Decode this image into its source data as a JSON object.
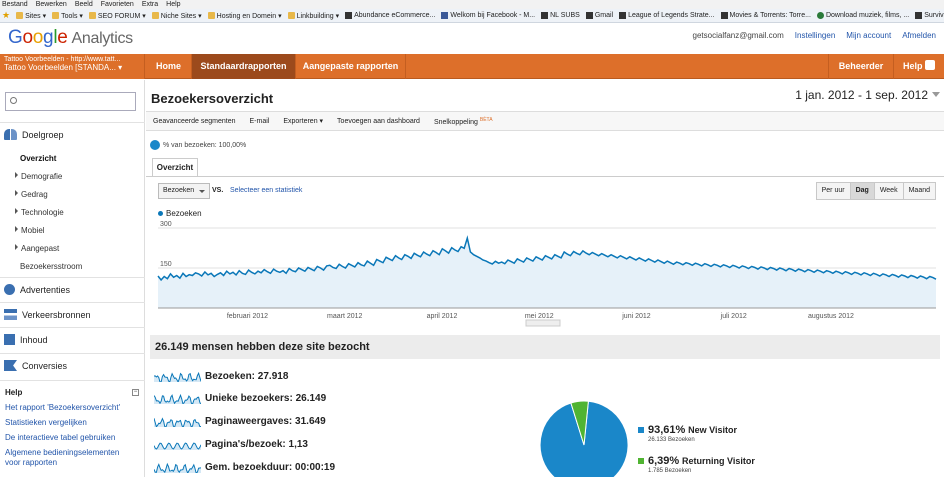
{
  "menubar": [
    "Bestand",
    "Bewerken",
    "Beeld",
    "Favorieten",
    "Extra",
    "Help"
  ],
  "favorites": [
    {
      "label": "Sites ▾",
      "icon": "folder-icon"
    },
    {
      "label": "Tools ▾",
      "icon": "folder-icon"
    },
    {
      "label": "SEO FORUM ▾",
      "icon": "folder-icon"
    },
    {
      "label": "Niche Sites ▾",
      "icon": "folder-icon"
    },
    {
      "label": "Hosting en Domein ▾",
      "icon": "folder-icon"
    },
    {
      "label": "Linkbuilding ▾",
      "icon": "folder-icon"
    },
    {
      "label": "Abundance eCommerce...",
      "icon": "page-icon"
    },
    {
      "label": "Welkom bij Facebook - M...",
      "icon": "facebook-icon"
    },
    {
      "label": "NL SUBS",
      "icon": "page-icon"
    },
    {
      "label": "Gmail",
      "icon": "page-icon"
    },
    {
      "label": "League of Legends Strate...",
      "icon": "page-icon"
    },
    {
      "label": "Movies & Torrents: Torre...",
      "icon": "page-icon"
    },
    {
      "label": "Download muziek, films, ...",
      "icon": "globe-icon"
    },
    {
      "label": "Survival Hunter DPS Rotat...",
      "icon": "page-icon"
    }
  ],
  "header": {
    "logo_google": [
      "G",
      "o",
      "o",
      "g",
      "l",
      "e"
    ],
    "logo_product": "Analytics",
    "email": "getsocialfanz@gmail.com",
    "settings": "Instellingen",
    "account": "Mijn account",
    "logout": "Afmelden"
  },
  "nav": {
    "profile_line1": "Tattoo Voorbeelden - http://www.tatt...",
    "profile_line2": "Tattoo Voorbeelden [STANDA... ▾",
    "tabs": [
      "Home",
      "Standaardrapporten",
      "Aangepaste rapporten"
    ],
    "admin": "Beheerder",
    "help": "Help"
  },
  "sidebar": {
    "sections": [
      {
        "label": "Doelgroep",
        "icon": "people-icon",
        "color": "#3a6fb0"
      },
      {
        "label": "Advertenties",
        "icon": "adwords-icon",
        "color": "#3a6fb0"
      },
      {
        "label": "Verkeersbronnen",
        "icon": "arrows-icon",
        "color": "#3a6fb0"
      },
      {
        "label": "Inhoud",
        "icon": "content-icon",
        "color": "#3a6fb0"
      },
      {
        "label": "Conversies",
        "icon": "flag-icon",
        "color": "#3a6fb0"
      }
    ],
    "audience_items": [
      "Overzicht",
      "Demografie",
      "Gedrag",
      "Technologie",
      "Mobiel",
      "Aangepast",
      "Bezoekersstroom"
    ],
    "help_title": "Help",
    "help_links": [
      "Het rapport 'Bezoekersoverzicht'",
      "Statistieken vergelijken",
      "De interactieve tabel gebruiken",
      "Algemene bedieningselementen",
      "voor rapporten"
    ]
  },
  "main": {
    "title": "Bezoekersoverzicht",
    "date_range": "1 jan. 2012 - 1 sep. 2012",
    "toolbar": [
      "Geavanceerde segmenten",
      "E-mail",
      "Exporteren ▾",
      "Toevoegen aan dashboard",
      "Snelkoppeling"
    ],
    "beta": "BÈTA",
    "segment_pct": "% van bezoeken: 100,00%",
    "tab": "Overzicht",
    "metric_select": "Bezoeken",
    "vs": "VS.",
    "select_stats": "Selecteer een statistiek",
    "granularity": [
      "Per uur",
      "Dag",
      "Week",
      "Maand"
    ],
    "granularity_selected": "Dag",
    "summary_header": "26.149 mensen hebben deze site bezocht",
    "metrics": [
      {
        "label": "Bezoeken: 27.918"
      },
      {
        "label": "Unieke bezoekers: 26.149"
      },
      {
        "label": "Paginaweergaves: 31.649"
      },
      {
        "label": "Pagina's/bezoek: 1,13"
      },
      {
        "label": "Gem. bezoekduur: 00:00:19"
      }
    ]
  },
  "chart_data": [
    {
      "type": "area",
      "series": [
        {
          "name": "Bezoeken",
          "color": "#0a77b8",
          "values": [
            120,
            105,
            118,
            110,
            128,
            115,
            122,
            112,
            130,
            118,
            125,
            122,
            132,
            128,
            120,
            135,
            124,
            130,
            118,
            126,
            132,
            122,
            138,
            128,
            134,
            124,
            140,
            130,
            126,
            142,
            134,
            128,
            138,
            132,
            144,
            136,
            130,
            146,
            138,
            134,
            140,
            130,
            148,
            140,
            136,
            150,
            144,
            138,
            152,
            146,
            140,
            156,
            150,
            142,
            158,
            160,
            152,
            148,
            164,
            156,
            150,
            166,
            160,
            154,
            170,
            162,
            158,
            176,
            168,
            160,
            182,
            176,
            170,
            190,
            184,
            178,
            196,
            188,
            182,
            200,
            194,
            186,
            205,
            198,
            192,
            210,
            202,
            196,
            215,
            208,
            200,
            222,
            214,
            206,
            226,
            218,
            212,
            230,
            224,
            262,
            210,
            200,
            194,
            188,
            180,
            176,
            170,
            165,
            175,
            168,
            172,
            166,
            180,
            174,
            168,
            184,
            178,
            172,
            188,
            182,
            176,
            192,
            186,
            180,
            196,
            190,
            184,
            200,
            194,
            188,
            210,
            202,
            196,
            212,
            205,
            200,
            214,
            206,
            200,
            208,
            202,
            196,
            204,
            198,
            192,
            200,
            194,
            188,
            196,
            190,
            184,
            192,
            186,
            180,
            188,
            182,
            176,
            184,
            178,
            172,
            180,
            174,
            168,
            176,
            170,
            164,
            172,
            168,
            162,
            170,
            166,
            160,
            168,
            164,
            158,
            166,
            162,
            156,
            164,
            160,
            154,
            162,
            158,
            152,
            160,
            156,
            150,
            158,
            154,
            148,
            156,
            152,
            146,
            154,
            150,
            144,
            152,
            148,
            142,
            150,
            146,
            140,
            148,
            144,
            138,
            146,
            142,
            136,
            144,
            140,
            134,
            142,
            138,
            132,
            140,
            136,
            130,
            138,
            134,
            128,
            136,
            132,
            126,
            134,
            130,
            124,
            132,
            128,
            122,
            130,
            126,
            120,
            128,
            124,
            118,
            126,
            122,
            116,
            124,
            120,
            114,
            122,
            118,
            112,
            120,
            116,
            110,
            118,
            114,
            108
          ]
        }
      ],
      "x_ticks": [
        "februari 2012",
        "maart 2012",
        "april 2012",
        "mei 2012",
        "juni 2012",
        "juli 2012",
        "augustus 2012"
      ],
      "y_ticks": [
        150,
        300
      ],
      "ylim": [
        0,
        300
      ],
      "grid": true,
      "legend": "top-left"
    },
    {
      "type": "pie",
      "slices": [
        {
          "label": "New Visitor",
          "pct": "93,61%",
          "value": 93.61,
          "count": "26.133 Bezoeken",
          "color": "#1a87c9"
        },
        {
          "label": "Returning Visitor",
          "pct": "6,39%",
          "value": 6.39,
          "count": "1.785 Bezoeken",
          "color": "#50b432"
        }
      ]
    }
  ]
}
